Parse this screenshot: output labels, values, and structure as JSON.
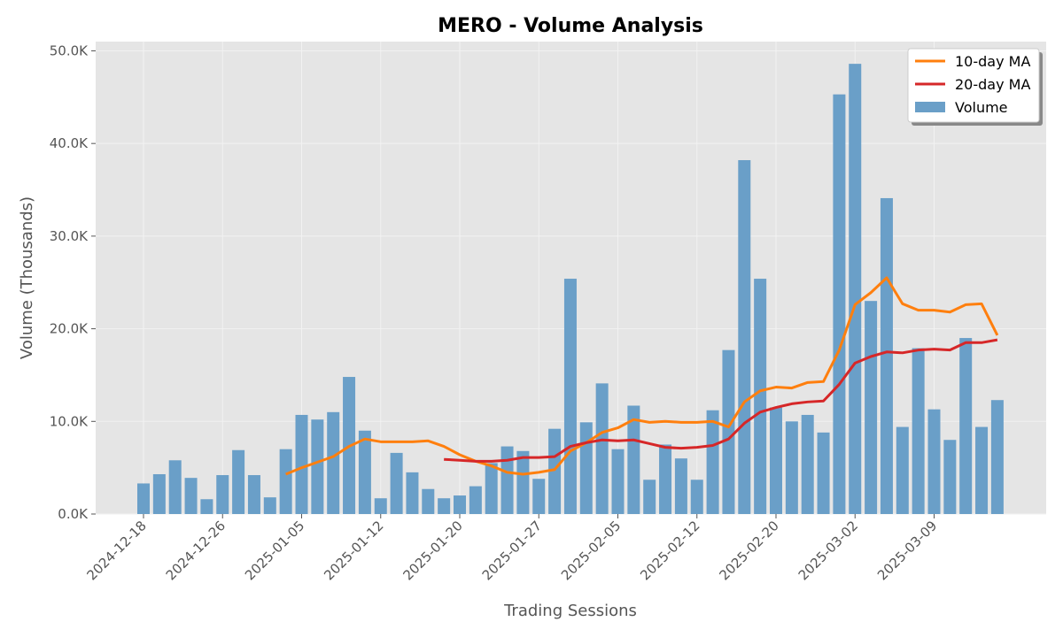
{
  "chart_data": {
    "type": "bar",
    "title": "MERO - Volume Analysis",
    "xlabel": "Trading Sessions",
    "ylabel": "Volume (Thousands)",
    "ylim": [
      0,
      51000
    ],
    "y_ticks": [
      0,
      10000,
      20000,
      30000,
      40000,
      50000
    ],
    "y_tick_labels": [
      "0.0K",
      "10.0K",
      "20.0K",
      "30.0K",
      "40.0K",
      "50.0K"
    ],
    "x_tick_labels": [
      "2024-12-18",
      "2024-12-26",
      "2025-01-05",
      "2025-01-12",
      "2025-01-20",
      "2025-01-27",
      "2025-02-05",
      "2025-02-12",
      "2025-02-20",
      "2025-03-02",
      "2025-03-09"
    ],
    "x_tick_positions": [
      0,
      5,
      10,
      15,
      20,
      25,
      30,
      35,
      40,
      45,
      50
    ],
    "grid": true,
    "legend_position": "top-right",
    "colors": {
      "volume": "#6a9fc8",
      "ma10": "#ff7f0e",
      "ma20": "#d62728",
      "plot_bg": "#e5e5e5",
      "grid": "#f2f2f2"
    },
    "series": [
      {
        "name": "Volume",
        "type": "bar",
        "values": [
          3300,
          4300,
          5800,
          3900,
          1600,
          4200,
          6900,
          4200,
          1800,
          7000,
          10700,
          10200,
          11000,
          14800,
          9000,
          1700,
          6600,
          4500,
          2700,
          1700,
          2000,
          3000,
          5500,
          7300,
          6800,
          3800,
          9200,
          25400,
          9900,
          14100,
          7000,
          11700,
          3700,
          7500,
          6000,
          3700,
          11200,
          17700,
          38200,
          25400,
          11500,
          10000,
          10700,
          8800,
          45300,
          48600,
          23000,
          34100,
          9400,
          17900,
          11300,
          8000,
          19000,
          9400,
          12300
        ]
      },
      {
        "name": "10-day MA",
        "type": "line",
        "values": [
          null,
          null,
          null,
          null,
          null,
          null,
          null,
          null,
          null,
          4300,
          5000,
          5600,
          6200,
          7300,
          8100,
          7800,
          7800,
          7800,
          7900,
          7300,
          6400,
          5700,
          5200,
          4500,
          4300,
          4500,
          4800,
          6800,
          7700,
          8800,
          9300,
          10200,
          9900,
          10000,
          9900,
          9900,
          10000,
          9400,
          12100,
          13300,
          13700,
          13600,
          14200,
          14300,
          17700,
          22600,
          23900,
          25500,
          22700,
          22000,
          22000,
          21800,
          22600,
          22700,
          19300
        ]
      },
      {
        "name": "20-day MA",
        "type": "line",
        "values": [
          null,
          null,
          null,
          null,
          null,
          null,
          null,
          null,
          null,
          null,
          null,
          null,
          null,
          null,
          null,
          null,
          null,
          null,
          null,
          5900,
          5800,
          5700,
          5700,
          5800,
          6100,
          6100,
          6200,
          7300,
          7700,
          8000,
          7900,
          8000,
          7600,
          7200,
          7100,
          7200,
          7400,
          8100,
          9800,
          11000,
          11500,
          11900,
          12100,
          12200,
          14000,
          16300,
          17000,
          17500,
          17400,
          17700,
          17800,
          17700,
          18500,
          18500,
          18800
        ]
      }
    ]
  }
}
